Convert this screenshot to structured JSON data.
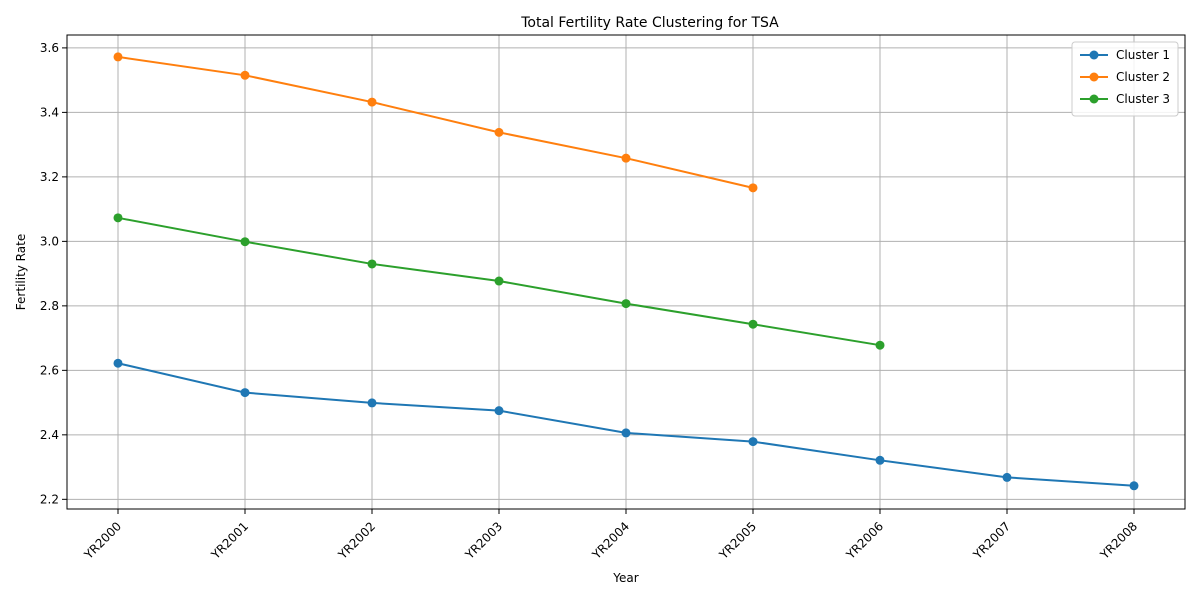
{
  "chart_data": {
    "type": "line",
    "title": "Total Fertility Rate Clustering for TSA",
    "xlabel": "Year",
    "ylabel": "Fertility Rate",
    "categories": [
      "YR2000",
      "YR2001",
      "YR2002",
      "YR2003",
      "YR2004",
      "YR2005",
      "YR2006",
      "YR2007",
      "YR2008"
    ],
    "ylim": [
      2.17,
      3.64
    ],
    "yticks": [
      2.2,
      2.4,
      2.6,
      2.8,
      3.0,
      3.2,
      3.4,
      3.6
    ],
    "grid": true,
    "legend_position": "top-right",
    "marker": "circle",
    "series": [
      {
        "name": "Cluster 1",
        "color": "#1f77b4",
        "values": [
          2.622,
          2.531,
          2.499,
          2.475,
          2.406,
          2.379,
          2.321,
          2.268,
          2.242
        ]
      },
      {
        "name": "Cluster 2",
        "color": "#ff7f0e",
        "values": [
          3.572,
          3.515,
          3.432,
          3.338,
          3.258,
          3.166,
          null,
          null,
          null
        ]
      },
      {
        "name": "Cluster 3",
        "color": "#2ca02c",
        "values": [
          3.073,
          2.999,
          2.93,
          2.877,
          2.807,
          2.743,
          2.678,
          null,
          null
        ]
      }
    ]
  }
}
